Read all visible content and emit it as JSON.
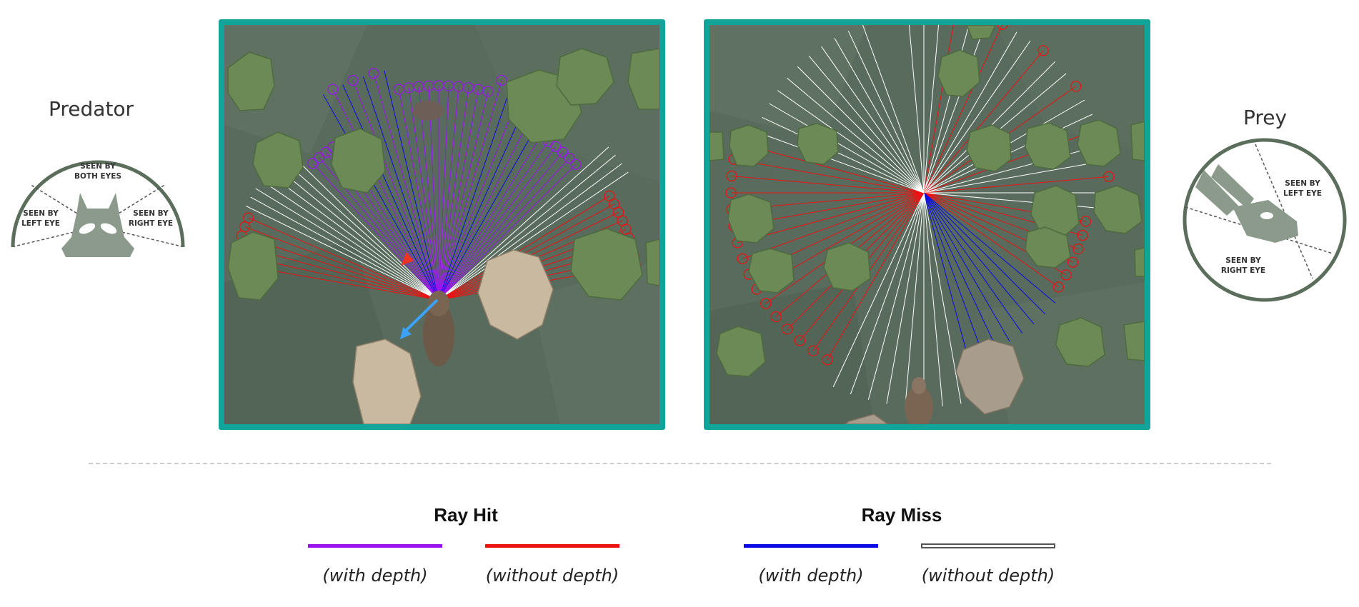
{
  "predator": {
    "label": "Predator",
    "regions": {
      "both_line1": "SEEN BY",
      "both_line2": "BOTH EYES",
      "left_line1": "SEEN BY",
      "left_line2": "LEFT EYE",
      "right_line1": "SEEN BY",
      "right_line2": "RIGHT EYE"
    }
  },
  "prey": {
    "label": "Prey",
    "regions": {
      "left_line1": "SEEN BY",
      "left_line2": "LEFT EYE",
      "right_line1": "SEEN BY",
      "right_line2": "RIGHT EYE"
    }
  },
  "legend": {
    "hit": {
      "title": "Ray Hit",
      "with_depth": "(with depth)",
      "without_depth": "(without depth)",
      "with_color": "#9b14f0",
      "without_color": "#ee1111"
    },
    "miss": {
      "title": "Ray Miss",
      "with_depth": "(with depth)",
      "without_depth": "(without depth)",
      "with_color": "#0a0ae6",
      "without_color": "#ffffff"
    }
  },
  "colors": {
    "panel_border": "#12a39a",
    "ground": "#586b5c",
    "tree": "#6b8a55",
    "rock": "#c9b9a0",
    "fov_outline": "#5b6e5c"
  }
}
